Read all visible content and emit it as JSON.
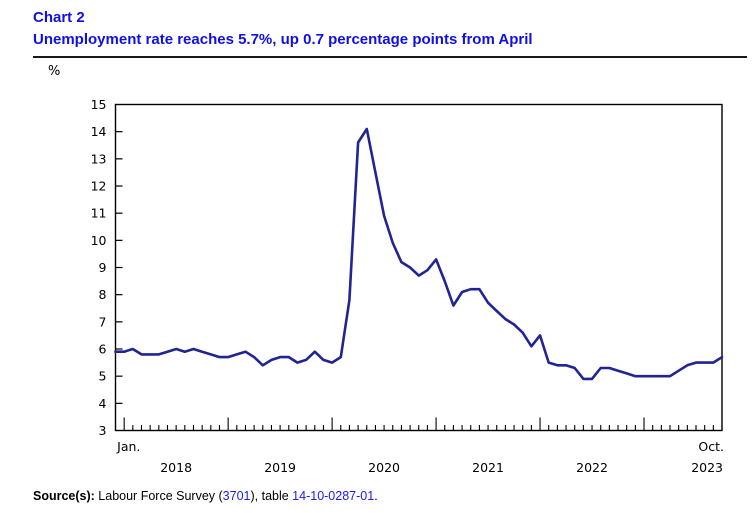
{
  "header": {
    "chart_label": "Chart 2",
    "title": "Unemployment rate reaches 5.7%, up 0.7 percentage points from April"
  },
  "y_unit_label": "%",
  "source": {
    "label": "Source(s):",
    "text_before_link1": " Labour Force Survey (",
    "link1": "3701",
    "text_between_links": "), table ",
    "link2": "14-10-0287-01",
    "text_after": "."
  },
  "colors": {
    "title_blue": "#0f0fe8",
    "link_blue": "#1a1aff",
    "series_navy": "#212492",
    "axis_black": "#000000"
  },
  "chart_data": {
    "type": "line",
    "title": "Unemployment rate reaches 5.7%, up 0.7 percentage points from April",
    "xlabel": "",
    "ylabel": "%",
    "ylim": [
      3,
      15
    ],
    "ytick_step": 1,
    "ytick_labels": [
      "15",
      "14",
      "13",
      "12",
      "11",
      "10",
      "9",
      "8",
      "7",
      "6",
      "5",
      "4",
      "3"
    ],
    "grid": false,
    "legend": "none",
    "frequency": "monthly",
    "x_start": "2017-12",
    "x_end": "2023-10",
    "x_first_point_label": "Jan.",
    "x_last_point_label": "Oct.",
    "x_year_labels": [
      "2018",
      "2019",
      "2020",
      "2021",
      "2022",
      "2023"
    ],
    "series": [
      {
        "name": "Unemployment rate (%)",
        "values": [
          5.9,
          5.9,
          6.0,
          5.8,
          5.8,
          5.8,
          5.9,
          6.0,
          5.9,
          6.0,
          5.9,
          5.8,
          5.7,
          5.7,
          5.8,
          5.9,
          5.7,
          5.4,
          5.6,
          5.7,
          5.7,
          5.5,
          5.6,
          5.9,
          5.6,
          5.5,
          5.7,
          7.8,
          13.6,
          14.1,
          12.5,
          10.9,
          9.9,
          9.2,
          9.0,
          8.7,
          8.9,
          9.3,
          8.5,
          7.6,
          8.1,
          8.2,
          8.2,
          7.7,
          7.4,
          7.1,
          6.9,
          6.6,
          6.1,
          6.5,
          5.5,
          5.4,
          5.4,
          5.3,
          4.9,
          4.9,
          5.3,
          5.3,
          5.2,
          5.1,
          5.0,
          5.0,
          5.0,
          5.0,
          5.0,
          5.2,
          5.4,
          5.5,
          5.5,
          5.5,
          5.7
        ]
      }
    ],
    "annotations": {
      "latest_value": 5.7,
      "latest_period": "Oct. 2023",
      "change_from_april_pp": 0.7
    }
  }
}
